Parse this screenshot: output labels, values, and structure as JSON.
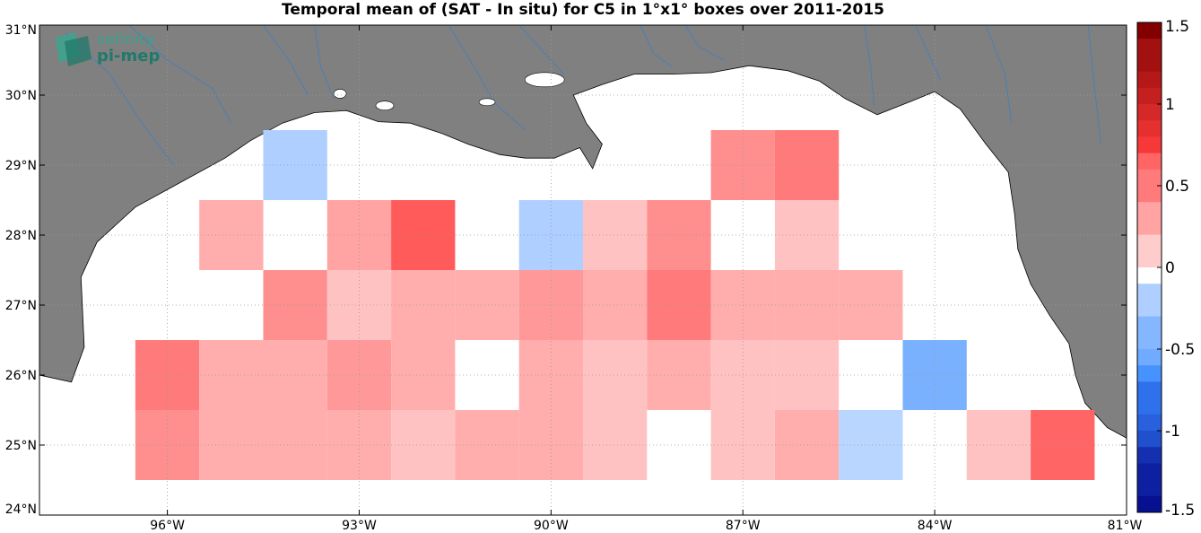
{
  "chart_data": {
    "type": "heatmap",
    "title": "Temporal mean of (SAT - In situ) for C5 in 1°x1° boxes over 2011-2015",
    "x_ticks": [
      "96°W",
      "93°W",
      "90°W",
      "87°W",
      "84°W",
      "81°W"
    ],
    "x_tick_values": [
      -96,
      -93,
      -90,
      -87,
      -84,
      -81
    ],
    "y_ticks": [
      "24°N",
      "25°N",
      "26°N",
      "27°N",
      "28°N",
      "29°N",
      "30°N",
      "31°N"
    ],
    "y_tick_values": [
      24,
      25,
      26,
      27,
      28,
      29,
      30,
      31
    ],
    "xlim": [
      -98,
      -81
    ],
    "ylim": [
      24,
      31
    ],
    "grid": true,
    "colorbar": {
      "min": -1.5,
      "max": 1.5,
      "tick_labels": [
        "1.5",
        "1",
        "0.5",
        "0",
        "-0.5",
        "-1",
        "-1.5"
      ],
      "tick_values": [
        1.5,
        1,
        0.5,
        0,
        -0.5,
        -1,
        -1.5
      ]
    },
    "cells": [
      {
        "lon": -94.0,
        "lat": 29.0,
        "value": -0.2
      },
      {
        "lon": -87.0,
        "lat": 29.0,
        "value": 0.4
      },
      {
        "lon": -86.0,
        "lat": 29.0,
        "value": 0.5
      },
      {
        "lon": -95.0,
        "lat": 28.0,
        "value": 0.25
      },
      {
        "lon": -93.0,
        "lat": 28.0,
        "value": 0.3
      },
      {
        "lon": -92.0,
        "lat": 28.0,
        "value": 0.65
      },
      {
        "lon": -90.0,
        "lat": 28.0,
        "value": -0.2
      },
      {
        "lon": -89.0,
        "lat": 28.0,
        "value": 0.15
      },
      {
        "lon": -88.0,
        "lat": 28.0,
        "value": 0.4
      },
      {
        "lon": -86.0,
        "lat": 28.0,
        "value": 0.15
      },
      {
        "lon": -94.0,
        "lat": 27.0,
        "value": 0.4
      },
      {
        "lon": -93.0,
        "lat": 27.0,
        "value": 0.15
      },
      {
        "lon": -92.0,
        "lat": 27.0,
        "value": 0.25
      },
      {
        "lon": -91.0,
        "lat": 27.0,
        "value": 0.25
      },
      {
        "lon": -90.0,
        "lat": 27.0,
        "value": 0.35
      },
      {
        "lon": -89.0,
        "lat": 27.0,
        "value": 0.25
      },
      {
        "lon": -88.0,
        "lat": 27.0,
        "value": 0.5
      },
      {
        "lon": -87.0,
        "lat": 27.0,
        "value": 0.25
      },
      {
        "lon": -86.0,
        "lat": 27.0,
        "value": 0.25
      },
      {
        "lon": -85.0,
        "lat": 27.0,
        "value": 0.25
      },
      {
        "lon": -96.0,
        "lat": 26.0,
        "value": 0.5
      },
      {
        "lon": -95.0,
        "lat": 26.0,
        "value": 0.25
      },
      {
        "lon": -94.0,
        "lat": 26.0,
        "value": 0.25
      },
      {
        "lon": -93.0,
        "lat": 26.0,
        "value": 0.35
      },
      {
        "lon": -92.0,
        "lat": 26.0,
        "value": 0.25
      },
      {
        "lon": -90.0,
        "lat": 26.0,
        "value": 0.25
      },
      {
        "lon": -89.0,
        "lat": 26.0,
        "value": 0.15
      },
      {
        "lon": -88.0,
        "lat": 26.0,
        "value": 0.25
      },
      {
        "lon": -87.0,
        "lat": 26.0,
        "value": 0.15
      },
      {
        "lon": -86.0,
        "lat": 26.0,
        "value": 0.15
      },
      {
        "lon": -84.0,
        "lat": 26.0,
        "value": -0.45
      },
      {
        "lon": -96.0,
        "lat": 25.0,
        "value": 0.4
      },
      {
        "lon": -95.0,
        "lat": 25.0,
        "value": 0.25
      },
      {
        "lon": -94.0,
        "lat": 25.0,
        "value": 0.25
      },
      {
        "lon": -93.0,
        "lat": 25.0,
        "value": 0.25
      },
      {
        "lon": -92.0,
        "lat": 25.0,
        "value": 0.15
      },
      {
        "lon": -91.0,
        "lat": 25.0,
        "value": 0.25
      },
      {
        "lon": -90.0,
        "lat": 25.0,
        "value": 0.25
      },
      {
        "lon": -89.0,
        "lat": 25.0,
        "value": 0.15
      },
      {
        "lon": -87.0,
        "lat": 25.0,
        "value": 0.15
      },
      {
        "lon": -86.0,
        "lat": 25.0,
        "value": 0.25
      },
      {
        "lon": -85.0,
        "lat": 25.0,
        "value": -0.15
      },
      {
        "lon": -83.0,
        "lat": 25.0,
        "value": 0.15
      },
      {
        "lon": -82.0,
        "lat": 25.0,
        "value": 0.6
      }
    ]
  },
  "logo": {
    "line1": "salinity",
    "line2": "pi-mep"
  },
  "colors": {
    "land": "#808080",
    "ocean": "#ffffff",
    "rivers": "#4a7fb5",
    "logo": "#2f9c86"
  }
}
